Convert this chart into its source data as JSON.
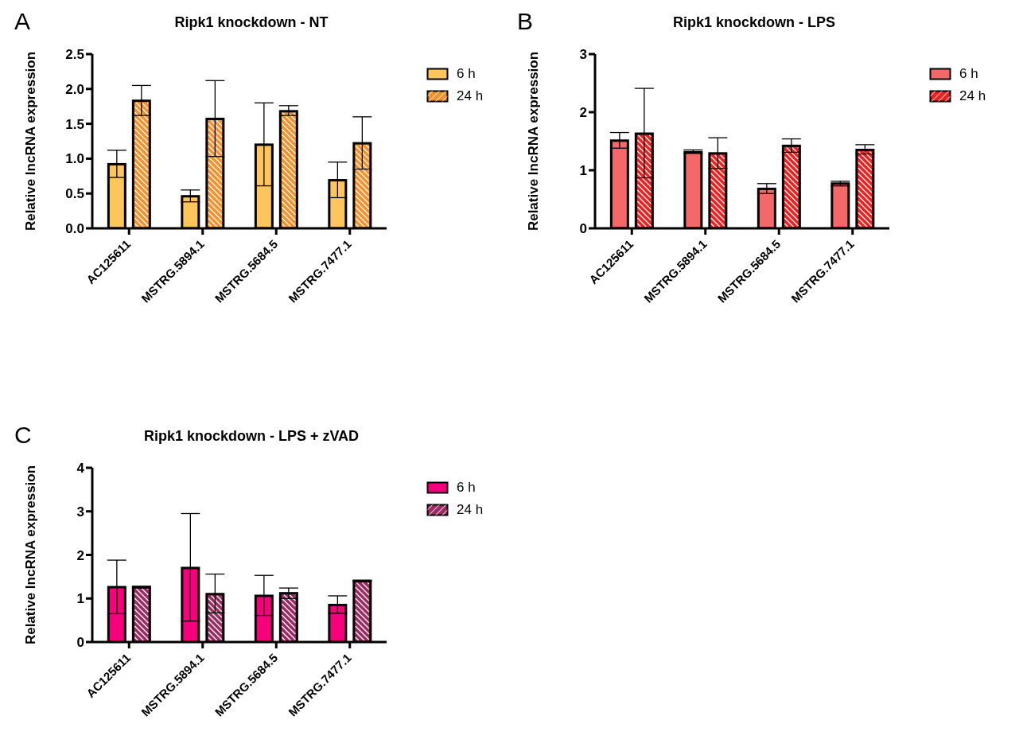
{
  "chart_data": [
    {
      "type": "bar",
      "title": "Ripk1 knockdown - NT",
      "ylabel": "Relative lncRNA expression",
      "annotations": [
        "A"
      ],
      "categories": [
        "AC125611",
        "MSTRG.5894.1",
        "MSTRG.5684.5",
        "MSTRG.7477.1"
      ],
      "ylim": [
        0,
        2.5
      ],
      "yticks": [
        {
          "value": 0,
          "label": "0.0"
        },
        0.5,
        {
          "value": 1,
          "label": "1.0"
        },
        1.5,
        {
          "value": 2,
          "label": "2.0"
        },
        2.5
      ],
      "grid": false,
      "legend": "top right",
      "series": [
        {
          "name": "6 h",
          "color": "#fdc65c",
          "values": [
            0.92,
            0.46,
            1.2,
            0.69
          ],
          "errors": [
            [
              0.73,
              1.12
            ],
            [
              0.38,
              0.55
            ],
            [
              0.61,
              1.8
            ],
            [
              0.44,
              0.95
            ]
          ]
        },
        {
          "name": "24 h",
          "color": "#f6902a",
          "values": [
            1.83,
            1.57,
            1.68,
            1.22
          ],
          "errors": [
            [
              1.62,
              2.05
            ],
            [
              1.03,
              2.12
            ],
            [
              1.62,
              1.76
            ],
            [
              0.85,
              1.6
            ]
          ]
        }
      ]
    },
    {
      "type": "bar",
      "title": "Ripk1 knockdown - LPS",
      "ylabel": "Relative lncRNA expression",
      "annotations": [
        "B"
      ],
      "categories": [
        "AC125611",
        "MSTRG.5894.1",
        "MSTRG.5684.5",
        "MSTRG.7477.1"
      ],
      "ylim": [
        0,
        3
      ],
      "yticks": [
        0,
        1,
        2,
        3
      ],
      "grid": false,
      "legend": "top right",
      "series": [
        {
          "name": "6 h",
          "color": "#f4686a",
          "values": [
            1.51,
            1.31,
            0.68,
            0.77
          ],
          "errors": [
            [
              1.38,
              1.65
            ],
            [
              1.29,
              1.35
            ],
            [
              0.6,
              0.77
            ],
            [
              0.73,
              0.81
            ]
          ]
        },
        {
          "name": "24 h",
          "color": "#f0201f",
          "values": [
            1.63,
            1.29,
            1.42,
            1.35
          ],
          "errors": [
            [
              0.87,
              2.41
            ],
            [
              1.03,
              1.56
            ],
            [
              1.31,
              1.54
            ],
            [
              1.28,
              1.44
            ]
          ]
        }
      ]
    },
    {
      "type": "bar",
      "title": "Ripk1 knockdown - LPS + zVAD",
      "ylabel": "Relative lncRNA expression",
      "annotations": [
        "C"
      ],
      "categories": [
        "AC125611",
        "MSTRG.5894.1",
        "MSTRG.5684.5",
        "MSTRG.7477.1"
      ],
      "ylim": [
        0,
        4
      ],
      "yticks": [
        0,
        1,
        2,
        3,
        4
      ],
      "grid": false,
      "legend": "top right",
      "series": [
        {
          "name": "6 h",
          "color": "#f7007c",
          "values": [
            1.26,
            1.7,
            1.06,
            0.85
          ],
          "errors": [
            [
              0.65,
              1.88
            ],
            [
              0.48,
              2.95
            ],
            [
              0.61,
              1.53
            ],
            [
              0.66,
              1.06
            ]
          ]
        },
        {
          "name": "24 h",
          "color": "#9e2a62",
          "values": [
            1.26,
            1.1,
            1.12,
            1.4
          ],
          "errors": [
            [
              1.24,
              1.28
            ],
            [
              0.67,
              1.56
            ],
            [
              1.0,
              1.24
            ],
            [
              1.38,
              1.42
            ]
          ]
        }
      ]
    }
  ]
}
